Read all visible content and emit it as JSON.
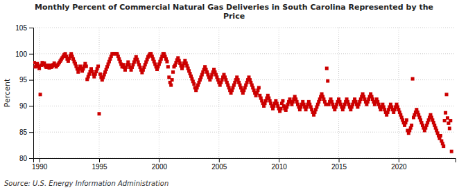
{
  "chart_data": {
    "type": "scatter",
    "title": "Monthly Percent of Commercial Natural Gas Deliveries in South Carolina Represented by the\nPrice",
    "ylabel": "Percent",
    "source": "Source: U.S. Energy Information Administration",
    "xlim": [
      1989.5,
      2024.75
    ],
    "ylim": [
      80,
      105
    ],
    "xticks": [
      1990,
      1995,
      2000,
      2005,
      2010,
      2015,
      2020
    ],
    "yticks": [
      80,
      85,
      90,
      95,
      100,
      105
    ],
    "grid": true,
    "color": "#cc0000",
    "marker": "square",
    "x": [
      1989.583,
      1989.667,
      1989.75,
      1989.833,
      1989.917,
      1990.0,
      1990.083,
      1990.167,
      1990.25,
      1990.333,
      1990.417,
      1990.5,
      1990.583,
      1990.667,
      1990.75,
      1990.833,
      1990.917,
      1991.0,
      1991.083,
      1991.167,
      1991.25,
      1991.333,
      1991.417,
      1991.5,
      1991.583,
      1991.667,
      1991.75,
      1991.833,
      1991.917,
      1992.0,
      1992.083,
      1992.167,
      1992.25,
      1992.333,
      1992.417,
      1992.5,
      1992.583,
      1992.667,
      1992.75,
      1992.833,
      1992.917,
      1993.0,
      1993.083,
      1993.167,
      1993.25,
      1993.333,
      1993.417,
      1993.5,
      1993.583,
      1993.667,
      1993.75,
      1993.833,
      1993.917,
      1994.0,
      1994.083,
      1994.167,
      1994.25,
      1994.333,
      1994.417,
      1994.5,
      1994.583,
      1994.667,
      1994.75,
      1994.833,
      1994.917,
      1995.0,
      1995.083,
      1995.167,
      1995.25,
      1995.333,
      1995.417,
      1995.5,
      1995.583,
      1995.667,
      1995.75,
      1995.833,
      1995.917,
      1996.0,
      1996.083,
      1996.167,
      1996.25,
      1996.333,
      1996.417,
      1996.5,
      1996.583,
      1996.667,
      1996.75,
      1996.833,
      1996.917,
      1997.0,
      1997.083,
      1997.167,
      1997.25,
      1997.333,
      1997.417,
      1997.5,
      1997.583,
      1997.667,
      1997.75,
      1997.833,
      1997.917,
      1998.0,
      1998.083,
      1998.167,
      1998.25,
      1998.333,
      1998.417,
      1998.5,
      1998.583,
      1998.667,
      1998.75,
      1998.833,
      1998.917,
      1999.0,
      1999.083,
      1999.167,
      1999.25,
      1999.333,
      1999.417,
      1999.5,
      1999.583,
      1999.667,
      1999.75,
      1999.833,
      1999.917,
      2000.0,
      2000.083,
      2000.167,
      2000.25,
      2000.333,
      2000.417,
      2000.5,
      2000.583,
      2000.667,
      2000.75,
      2000.833,
      2000.917,
      2001.0,
      2001.083,
      2001.167,
      2001.25,
      2001.333,
      2001.417,
      2001.5,
      2001.583,
      2001.667,
      2001.75,
      2001.833,
      2001.917,
      2002.0,
      2002.083,
      2002.167,
      2002.25,
      2002.333,
      2002.417,
      2002.5,
      2002.583,
      2002.667,
      2002.75,
      2002.833,
      2002.917,
      2003.0,
      2003.083,
      2003.167,
      2003.25,
      2003.333,
      2003.417,
      2003.5,
      2003.583,
      2003.667,
      2003.75,
      2003.833,
      2003.917,
      2004.0,
      2004.083,
      2004.167,
      2004.25,
      2004.333,
      2004.417,
      2004.5,
      2004.583,
      2004.667,
      2004.75,
      2004.833,
      2004.917,
      2005.0,
      2005.083,
      2005.167,
      2005.25,
      2005.333,
      2005.417,
      2005.5,
      2005.583,
      2005.667,
      2005.75,
      2005.833,
      2005.917,
      2006.0,
      2006.083,
      2006.167,
      2006.25,
      2006.333,
      2006.417,
      2006.5,
      2006.583,
      2006.667,
      2006.75,
      2006.833,
      2006.917,
      2007.0,
      2007.083,
      2007.167,
      2007.25,
      2007.333,
      2007.417,
      2007.5,
      2007.583,
      2007.667,
      2007.75,
      2007.833,
      2007.917,
      2008.0,
      2008.083,
      2008.167,
      2008.25,
      2008.333,
      2008.417,
      2008.5,
      2008.583,
      2008.667,
      2008.75,
      2008.833,
      2008.917,
      2009.0,
      2009.083,
      2009.167,
      2009.25,
      2009.333,
      2009.417,
      2009.5,
      2009.583,
      2009.667,
      2009.75,
      2009.833,
      2009.917,
      2010.0,
      2010.083,
      2010.167,
      2010.25,
      2010.333,
      2010.417,
      2010.5,
      2010.583,
      2010.667,
      2010.75,
      2010.833,
      2010.917,
      2011.0,
      2011.083,
      2011.167,
      2011.25,
      2011.333,
      2011.417,
      2011.5,
      2011.583,
      2011.667,
      2011.75,
      2011.833,
      2011.917,
      2012.0,
      2012.083,
      2012.167,
      2012.25,
      2012.333,
      2012.417,
      2012.5,
      2012.583,
      2012.667,
      2012.75,
      2012.833,
      2012.917,
      2013.0,
      2013.083,
      2013.167,
      2013.25,
      2013.333,
      2013.417,
      2013.5,
      2013.583,
      2013.667,
      2013.75,
      2013.833,
      2013.917,
      2014.0,
      2014.083,
      2014.167,
      2014.25,
      2014.333,
      2014.417,
      2014.5,
      2014.583,
      2014.667,
      2014.75,
      2014.833,
      2014.917,
      2015.0,
      2015.083,
      2015.167,
      2015.25,
      2015.333,
      2015.417,
      2015.5,
      2015.583,
      2015.667,
      2015.75,
      2015.833,
      2015.917,
      2016.0,
      2016.083,
      2016.167,
      2016.25,
      2016.333,
      2016.417,
      2016.5,
      2016.583,
      2016.667,
      2016.75,
      2016.833,
      2016.917,
      2017.0,
      2017.083,
      2017.167,
      2017.25,
      2017.333,
      2017.417,
      2017.5,
      2017.583,
      2017.667,
      2017.75,
      2017.833,
      2017.917,
      2018.0,
      2018.083,
      2018.167,
      2018.25,
      2018.333,
      2018.417,
      2018.5,
      2018.583,
      2018.667,
      2018.75,
      2018.833,
      2018.917,
      2019.0,
      2019.083,
      2019.167,
      2019.25,
      2019.333,
      2019.417,
      2019.5,
      2019.583,
      2019.667,
      2019.75,
      2019.833,
      2019.917,
      2020.0,
      2020.083,
      2020.167,
      2020.25,
      2020.333,
      2020.417,
      2020.5,
      2020.583,
      2020.667,
      2020.75,
      2020.833,
      2020.917,
      2021.0,
      2021.083,
      2021.167,
      2021.25,
      2021.333,
      2021.417,
      2021.5,
      2021.583,
      2021.667,
      2021.75,
      2021.833,
      2021.917,
      2022.0,
      2022.083,
      2022.167,
      2022.25,
      2022.333,
      2022.417,
      2022.5,
      2022.583,
      2022.667,
      2022.75,
      2022.833,
      2022.917,
      2023.0,
      2023.083,
      2023.167,
      2023.25,
      2023.333,
      2023.417,
      2023.5,
      2023.583,
      2023.667,
      2023.75,
      2023.833,
      2023.917,
      2024.0,
      2024.083,
      2024.167,
      2024.25,
      2024.333,
      2024.417
    ],
    "values": [
      98.3,
      97.5,
      97.8,
      98.1,
      97.6,
      97.2,
      92.2,
      97.8,
      98.3,
      97.9,
      98.2,
      97.7,
      97.4,
      97.8,
      97.5,
      97.3,
      97.8,
      97.4,
      97.6,
      97.9,
      98.2,
      97.8,
      97.5,
      97.8,
      98.0,
      98.3,
      98.6,
      98.9,
      99.2,
      99.5,
      99.8,
      100.0,
      99.5,
      99.0,
      98.6,
      99.1,
      99.6,
      100.0,
      99.5,
      99.0,
      98.5,
      98.1,
      97.6,
      97.1,
      96.5,
      97.1,
      97.6,
      97.2,
      96.7,
      97.1,
      97.6,
      98.1,
      97.6,
      95.1,
      95.6,
      96.1,
      96.6,
      97.1,
      96.6,
      96.1,
      95.6,
      96.1,
      96.6,
      97.1,
      97.6,
      88.5,
      96.1,
      95.5,
      95.0,
      95.5,
      96.0,
      96.5,
      97.0,
      97.5,
      98.0,
      98.5,
      99.0,
      99.5,
      100.0,
      100.0,
      100.0,
      100.0,
      100.0,
      100.0,
      99.5,
      99.0,
      98.5,
      98.0,
      97.5,
      97.9,
      97.4,
      96.9,
      97.4,
      97.9,
      98.4,
      97.9,
      97.4,
      96.9,
      97.4,
      97.9,
      98.4,
      98.9,
      99.4,
      98.9,
      98.4,
      97.9,
      97.4,
      96.9,
      96.4,
      96.9,
      97.4,
      97.9,
      98.4,
      98.9,
      99.4,
      99.7,
      100.0,
      100.0,
      99.5,
      99.0,
      98.5,
      98.0,
      97.5,
      97.0,
      97.5,
      98.0,
      98.5,
      99.0,
      99.5,
      100.0,
      100.0,
      99.5,
      99.0,
      98.5,
      97.5,
      95.5,
      94.5,
      94.0,
      95.0,
      96.5,
      97.5,
      97.8,
      98.3,
      98.8,
      99.2,
      98.7,
      98.2,
      97.7,
      97.2,
      97.7,
      98.2,
      98.7,
      98.2,
      97.7,
      97.2,
      96.7,
      96.2,
      95.7,
      95.2,
      94.7,
      94.2,
      93.5,
      93.0,
      93.5,
      94.0,
      94.5,
      95.0,
      95.5,
      96.0,
      96.5,
      97.0,
      97.5,
      97.0,
      96.5,
      96.0,
      95.5,
      95.0,
      95.5,
      96.0,
      96.5,
      97.0,
      96.5,
      96.0,
      95.5,
      95.0,
      94.5,
      94.0,
      94.5,
      95.0,
      95.5,
      96.0,
      95.5,
      95.0,
      94.5,
      94.0,
      93.5,
      93.0,
      92.5,
      93.0,
      93.5,
      94.0,
      94.5,
      95.0,
      95.5,
      95.0,
      94.5,
      94.0,
      93.5,
      93.0,
      92.5,
      93.0,
      93.5,
      94.0,
      94.5,
      95.0,
      95.5,
      95.0,
      94.5,
      94.0,
      93.5,
      93.0,
      92.5,
      92.0,
      92.5,
      93.0,
      93.5,
      92.0,
      91.5,
      91.0,
      90.5,
      90.0,
      90.5,
      91.0,
      91.5,
      92.0,
      91.5,
      91.0,
      90.5,
      90.0,
      89.5,
      90.0,
      90.5,
      91.0,
      90.5,
      90.0,
      89.5,
      89.0,
      89.5,
      90.5,
      91.0,
      90.0,
      89.5,
      89.2,
      89.8,
      90.3,
      90.8,
      91.3,
      90.8,
      90.3,
      90.8,
      91.3,
      91.8,
      91.3,
      90.8,
      90.3,
      89.8,
      89.3,
      89.8,
      90.3,
      90.8,
      90.3,
      89.8,
      89.3,
      89.8,
      90.3,
      90.8,
      90.3,
      89.8,
      89.3,
      88.8,
      88.3,
      88.8,
      89.3,
      89.8,
      90.3,
      90.8,
      91.3,
      91.8,
      92.3,
      91.8,
      91.3,
      90.8,
      90.3,
      97.2,
      94.8,
      90.3,
      90.8,
      91.3,
      90.8,
      90.3,
      89.8,
      89.3,
      89.8,
      90.3,
      90.8,
      91.3,
      90.8,
      90.3,
      89.8,
      89.3,
      89.8,
      90.3,
      90.8,
      91.3,
      90.8,
      90.3,
      89.8,
      89.3,
      89.8,
      90.3,
      90.8,
      91.3,
      90.8,
      90.3,
      89.8,
      90.3,
      90.8,
      91.3,
      91.8,
      92.3,
      91.8,
      91.3,
      90.8,
      90.3,
      90.8,
      91.3,
      91.8,
      92.3,
      91.8,
      91.3,
      90.8,
      90.3,
      90.8,
      91.3,
      90.8,
      90.3,
      89.8,
      89.3,
      89.8,
      90.3,
      89.8,
      89.3,
      88.8,
      88.3,
      88.8,
      89.3,
      89.8,
      90.3,
      89.8,
      89.3,
      88.8,
      89.3,
      89.8,
      90.3,
      89.8,
      89.3,
      88.8,
      88.3,
      87.8,
      87.3,
      86.8,
      86.3,
      86.8,
      87.3,
      85.3,
      84.8,
      85.3,
      85.8,
      86.3,
      95.2,
      87.8,
      88.3,
      88.8,
      89.3,
      88.8,
      88.3,
      87.8,
      87.3,
      86.8,
      86.3,
      85.8,
      85.3,
      85.8,
      86.3,
      86.8,
      87.3,
      87.8,
      88.3,
      87.8,
      87.3,
      86.8,
      86.3,
      85.8,
      85.3,
      84.8,
      84.3,
      83.8,
      84.3,
      83.3,
      82.8,
      82.3,
      87.2,
      88.7,
      92.2,
      87.7,
      86.7,
      85.7,
      87.2,
      81.3
    ]
  }
}
